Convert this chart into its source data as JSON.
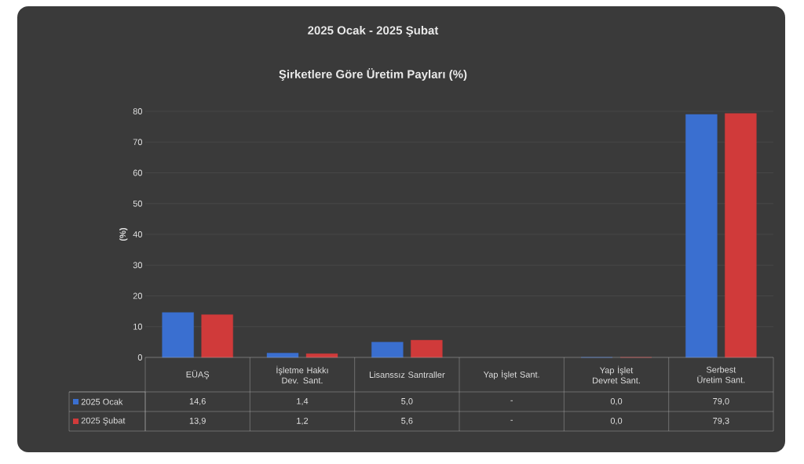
{
  "chart_data": {
    "type": "bar",
    "title": "2025 Ocak - 2025 Şubat",
    "subtitle": "Şirketlere Göre Üretim Payları (%)",
    "ylabel": "(%)",
    "categories": [
      "EÜAŞ",
      "İşletme Hakkı Dev. Sant.",
      "Lisanssız Santraller",
      "Yap İşlet Sant.",
      "Yap İşlet Devret Sant.",
      "Serbest Üretim Sant."
    ],
    "series": [
      {
        "name": "2025 Ocak",
        "color": "#3a6fd0",
        "values": [
          14.6,
          1.4,
          5.0,
          null,
          0.0,
          79.0
        ],
        "value_labels": [
          "14,6",
          "1,4",
          "5,0",
          "-",
          "0,0",
          "79,0"
        ]
      },
      {
        "name": "2025 Şubat",
        "color": "#d03a3a",
        "values": [
          13.9,
          1.2,
          5.6,
          null,
          0.0,
          79.3
        ],
        "value_labels": [
          "13,9",
          "1,2",
          "5,6",
          "-",
          "0,0",
          "79,3"
        ]
      }
    ],
    "ylim": [
      0,
      80
    ],
    "yticks": [
      0,
      10,
      20,
      30,
      40,
      50,
      60,
      70,
      80
    ],
    "grid": "y",
    "legend": "bottom"
  }
}
